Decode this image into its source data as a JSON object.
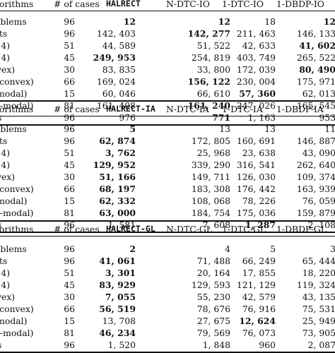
{
  "tables": [
    {
      "header": [
        "lgorithms",
        "# of cases",
        "HALRECT",
        "N-DTC-IO",
        "1-DTC-IO",
        "1-DBDP-IO"
      ],
      "rows": [
        {
          "label": "roblems",
          "cells": [
            "96",
            "12",
            "12",
            "18",
            "12"
          ],
          "bold": [
            false,
            true,
            true,
            false,
            true
          ]
        },
        {
          "label": "ults",
          "cells": [
            "96",
            "142, 403",
            "142, 277",
            "211, 463",
            "146, 133"
          ],
          "bold": [
            false,
            false,
            true,
            false,
            false
          ]
        },
        {
          "label": "≤ 4)",
          "cells": [
            "51",
            "44, 589",
            "51, 522",
            "42, 633",
            "41, 602"
          ],
          "bold": [
            false,
            false,
            false,
            false,
            true
          ]
        },
        {
          "label": "> 4)",
          "cells": [
            "45",
            "249, 953",
            "254, 819",
            "403, 749",
            "265, 522"
          ],
          "bold": [
            false,
            true,
            false,
            false,
            false
          ]
        },
        {
          "label": "nvex)",
          "cells": [
            "30",
            "83, 835",
            "33, 800",
            "172, 039",
            "80, 490"
          ],
          "bold": [
            false,
            false,
            false,
            false,
            true
          ]
        },
        {
          "label": "n-convex)",
          "cells": [
            "66",
            "169, 024",
            "156, 122",
            "230, 004",
            "175, 971"
          ],
          "bold": [
            false,
            false,
            true,
            false,
            false
          ]
        },
        {
          "label": "i-modal)",
          "cells": [
            "15",
            "60, 046",
            "66, 610",
            "57, 360",
            "62, 013"
          ],
          "bold": [
            false,
            false,
            false,
            true,
            false
          ]
        },
        {
          "label": "lti-modal)",
          "cells": [
            "81",
            "161, 408",
            "161, 240",
            "247, 026",
            "165, 545"
          ],
          "bold": [
            false,
            false,
            true,
            false,
            false
          ]
        },
        {
          "label": "lts",
          "cells": [
            "96",
            "976",
            "771",
            "1, 163",
            "953"
          ],
          "bold": [
            false,
            false,
            true,
            false,
            false
          ]
        }
      ]
    },
    {
      "header": [
        "lgorithms",
        "# of cases",
        "HALRECT-IA",
        "N-DTC-IA",
        "1-DTC-IA",
        "1-DBDP-IA"
      ],
      "rows": [
        {
          "label": "roblems",
          "cells": [
            "96",
            "5",
            "13",
            "13",
            "11"
          ],
          "bold": [
            false,
            true,
            false,
            false,
            false
          ]
        },
        {
          "label": "ults",
          "cells": [
            "96",
            "62, 874",
            "172, 805",
            "160, 691",
            "146, 887"
          ],
          "bold": [
            false,
            true,
            false,
            false,
            false
          ]
        },
        {
          "label": "≤ 4)",
          "cells": [
            "51",
            "3, 762",
            "25, 968",
            "23, 638",
            "43, 090"
          ],
          "bold": [
            false,
            true,
            false,
            false,
            false
          ]
        },
        {
          "label": "> 4)",
          "cells": [
            "45",
            "129, 952",
            "339, 290",
            "316, 541",
            "262, 640"
          ],
          "bold": [
            false,
            true,
            false,
            false,
            false
          ]
        },
        {
          "label": "nvex)",
          "cells": [
            "30",
            "51, 166",
            "149, 711",
            "126, 030",
            "109, 374"
          ],
          "bold": [
            false,
            true,
            false,
            false,
            false
          ]
        },
        {
          "label": "n-convex)",
          "cells": [
            "66",
            "68, 197",
            "183, 308",
            "176, 442",
            "163, 939"
          ],
          "bold": [
            false,
            true,
            false,
            false,
            false
          ]
        },
        {
          "label": "i-modal)",
          "cells": [
            "15",
            "62, 332",
            "108, 068",
            "78, 226",
            "76, 059"
          ],
          "bold": [
            false,
            true,
            false,
            false,
            false
          ]
        },
        {
          "label": "lti-modal)",
          "cells": [
            "81",
            "63, 000",
            "184, 754",
            "175, 036",
            "159, 879"
          ],
          "bold": [
            false,
            true,
            false,
            false,
            false
          ]
        },
        {
          "label": "lts",
          "cells": [
            "96",
            "1, 581",
            "7, 608",
            "1, 287",
            "2, 108"
          ],
          "bold": [
            false,
            false,
            false,
            true,
            false
          ]
        }
      ]
    },
    {
      "header": [
        "lgorithms",
        "# of cases",
        "HALRECT-GL",
        "N-DTC-GL",
        "1-DTC-GL",
        "1-DBDP-GL"
      ],
      "rows": [
        {
          "label": "roblems",
          "cells": [
            "96",
            "2",
            "4",
            "5",
            "3"
          ],
          "bold": [
            false,
            true,
            false,
            false,
            false
          ]
        },
        {
          "label": "ults",
          "cells": [
            "96",
            "41, 061",
            "71, 488",
            "66, 249",
            "65, 444"
          ],
          "bold": [
            false,
            true,
            false,
            false,
            false
          ]
        },
        {
          "label": "≤ 4)",
          "cells": [
            "51",
            "3, 301",
            "20, 164",
            "17, 855",
            "18, 220"
          ],
          "bold": [
            false,
            true,
            false,
            false,
            false
          ]
        },
        {
          "label": "> 4)",
          "cells": [
            "45",
            "83, 929",
            "129, 593",
            "121, 129",
            "119, 324"
          ],
          "bold": [
            false,
            true,
            false,
            false,
            false
          ]
        },
        {
          "label": "nvex)",
          "cells": [
            "30",
            "7, 055",
            "55, 230",
            "42, 579",
            "43, 135"
          ],
          "bold": [
            false,
            true,
            false,
            false,
            false
          ]
        },
        {
          "label": "n-convex)",
          "cells": [
            "66",
            "56, 519",
            "78, 676",
            "76, 916",
            "75, 531"
          ],
          "bold": [
            false,
            true,
            false,
            false,
            false
          ]
        },
        {
          "label": "i-modal)",
          "cells": [
            "15",
            "13, 708",
            "27, 675",
            "12, 624",
            "25, 949"
          ],
          "bold": [
            false,
            false,
            false,
            true,
            false
          ]
        },
        {
          "label": "lti-modal)",
          "cells": [
            "81",
            "46, 234",
            "79, 569",
            "76, 073",
            "73, 905"
          ],
          "bold": [
            false,
            true,
            false,
            false,
            false
          ]
        },
        {
          "label": "lts",
          "cells": [
            "96",
            "1, 520",
            "1, 848",
            "960",
            "2, 087"
          ],
          "bold": [
            false,
            false,
            false,
            false,
            false
          ]
        }
      ]
    }
  ]
}
